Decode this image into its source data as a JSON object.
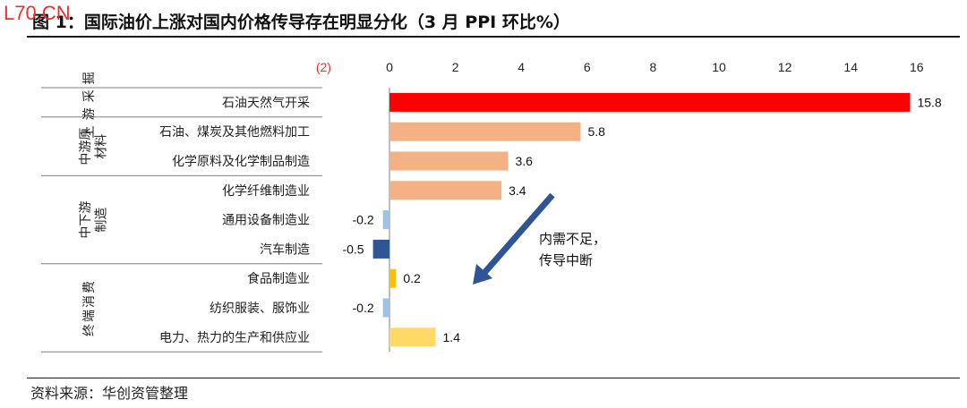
{
  "watermark": "L70.CN",
  "title": "图 1：国际油价上涨对国内价格传导存在明显分化（3 月 PPI 环比%）",
  "source": "资料来源：华创资管整理",
  "annotation": [
    "内需不足，",
    "传导中断"
  ],
  "colors": {
    "upstream": "#ff0000",
    "midstream": "#f4b183",
    "light_blue": "#9dc3e6",
    "dark_blue": "#2f5597",
    "orange": "#ffc000",
    "light_yellow": "#ffd966",
    "arrow": "#2f5597",
    "negative_tick": "#e8322f"
  },
  "chart_data": {
    "type": "bar",
    "orientation": "horizontal",
    "xlim": [
      -2,
      16
    ],
    "x_ticks": [
      {
        "value": -2,
        "label": "(2)"
      },
      {
        "value": 0,
        "label": "0"
      },
      {
        "value": 2,
        "label": "2"
      },
      {
        "value": 4,
        "label": "4"
      },
      {
        "value": 6,
        "label": "6"
      },
      {
        "value": 8,
        "label": "8"
      },
      {
        "value": 10,
        "label": "10"
      },
      {
        "value": 12,
        "label": "12"
      },
      {
        "value": 14,
        "label": "14"
      },
      {
        "value": 16,
        "label": "16"
      }
    ],
    "groups": [
      {
        "name": "上游采掘",
        "count": 1
      },
      {
        "name": "中游原材料",
        "count": 2
      },
      {
        "name": "中下游制造",
        "count": 3
      },
      {
        "name": "终端消费",
        "count": 3
      }
    ],
    "categories": [
      "石油天然气开采",
      "石油、煤炭及其他燃料加工",
      "化学原料及化学制品制造",
      "化学纤维制造业",
      "通用设备制造业",
      "汽车制造",
      "食品制造业",
      "纺织服装、服饰业",
      "电力、热力的生产和供应业"
    ],
    "values": [
      15.8,
      5.8,
      3.6,
      3.4,
      -0.2,
      -0.5,
      0.2,
      -0.2,
      1.4
    ],
    "value_labels": [
      "15.8",
      "5.8",
      "3.6",
      "3.4",
      "-0.2",
      "-0.5",
      "0.2",
      "-0.2",
      "1.4"
    ],
    "bar_colors": [
      "#ff0000",
      "#f4b183",
      "#f4b183",
      "#f4b183",
      "#9dc3e6",
      "#2f5597",
      "#ffc000",
      "#9dc3e6",
      "#ffd966"
    ]
  }
}
